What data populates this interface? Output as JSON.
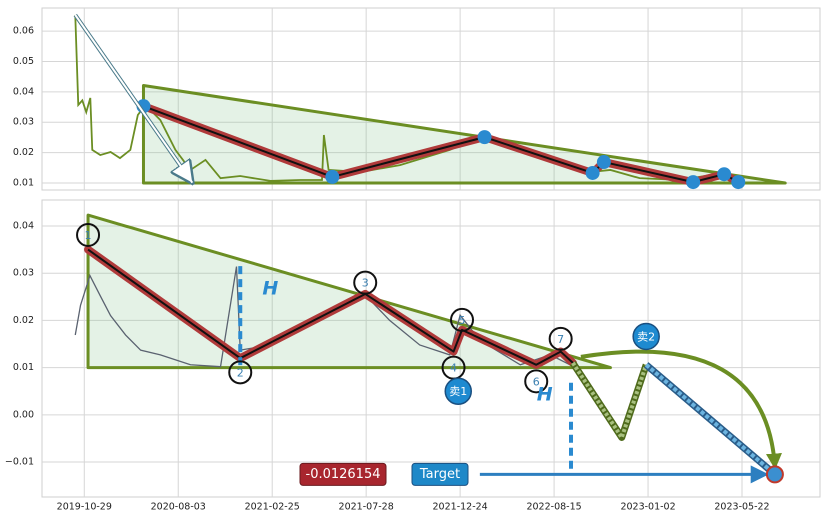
{
  "chart_data": [
    {
      "type": "line",
      "xlim": [
        -0.45,
        7.83
      ],
      "ylim": [
        0.0077,
        0.0676
      ],
      "xticks": [
        0,
        1,
        2,
        3,
        4,
        5,
        6,
        7
      ],
      "yticks": [
        0.01,
        0.02,
        0.03,
        0.04,
        0.05,
        0.06
      ],
      "grid": true,
      "series": [
        {
          "color": "#6b8e23",
          "x": [
            -0.096,
            -0.064,
            -0.021,
            0.021,
            0.064,
            0.085,
            0.17,
            0.28,
            0.38,
            0.49,
            0.57,
            0.65,
            0.81,
            0.97,
            1.13,
            1.29,
            1.45,
            1.66,
            1.98,
            2.3,
            2.53,
            2.55,
            2.6,
            2.94,
            3.36,
            3.89,
            4.26,
            4.64,
            5.06,
            5.38,
            5.6,
            5.91,
            6.34,
            6.66,
            6.98
          ],
          "values": [
            0.0653,
            0.0357,
            0.0372,
            0.0333,
            0.038,
            0.0209,
            0.0192,
            0.0202,
            0.0182,
            0.0209,
            0.0324,
            0.0357,
            0.0307,
            0.0209,
            0.0143,
            0.0176,
            0.0116,
            0.0123,
            0.0107,
            0.011,
            0.011,
            0.0258,
            0.0143,
            0.0136,
            0.0159,
            0.0209,
            0.0258,
            0.0209,
            0.0169,
            0.0136,
            0.0143,
            0.0116,
            0.011,
            0.0126,
            0.0103
          ]
        }
      ],
      "triangle": {
        "color": "#6b8e23",
        "x": [
          0.63,
          0.63,
          7.46
        ],
        "values": [
          0.0421,
          0.01,
          0.01
        ]
      },
      "zigzag": {
        "color": "#b03a3a",
        "x": [
          0.63,
          2.64,
          4.26,
          5.41,
          5.53,
          6.48,
          6.81,
          6.96
        ],
        "values": [
          0.0353,
          0.012,
          0.0251,
          0.0133,
          0.0169,
          0.0103,
          0.0129,
          0.0103
        ]
      },
      "arrow": {
        "x": [
          -0.096,
          1.15
        ],
        "values": [
          0.0653,
          0.0101
        ]
      }
    },
    {
      "type": "line",
      "xlim": [
        -0.45,
        7.83
      ],
      "ylim": [
        -0.0174,
        0.0455
      ],
      "xticks": [
        {
          "value": 0,
          "label": "2019-10-29"
        },
        {
          "value": 1,
          "label": "2020-08-03"
        },
        {
          "value": 2,
          "label": "2021-02-25"
        },
        {
          "value": 3,
          "label": "2021-07-28"
        },
        {
          "value": 4,
          "label": "2021-12-24"
        },
        {
          "value": 5,
          "label": "2022-08-15"
        },
        {
          "value": 6,
          "label": "2023-01-02"
        },
        {
          "value": 7,
          "label": "2023-05-22"
        }
      ],
      "yticks": [
        {
          "value": -0.01,
          "label": "−0.01"
        },
        {
          "value": 0,
          "label": "0.00"
        },
        0.01,
        0.02,
        0.03,
        0.04
      ],
      "grid": true,
      "series": [
        {
          "color": "#5a6270",
          "x": [
            -0.096,
            -0.04,
            0.06,
            0.17,
            0.28,
            0.44,
            0.6,
            0.81,
            1.13,
            1.45,
            1.62,
            1.66,
            1.98,
            2.3,
            2.72,
            2.99,
            3.25,
            3.57,
            3.89,
            4.0,
            4.21,
            4.64,
            4.96,
            5.17
          ],
          "values": [
            0.0169,
            0.0232,
            0.0295,
            0.0252,
            0.021,
            0.0169,
            0.0137,
            0.0127,
            0.0106,
            0.0102,
            0.0314,
            0.0137,
            0.0148,
            0.019,
            0.0233,
            0.0254,
            0.02,
            0.0148,
            0.0127,
            0.0211,
            0.0158,
            0.0106,
            0.0127,
            0.0106
          ]
        }
      ],
      "triangle": {
        "color": "#6b8e23",
        "x": [
          0.04,
          0.04,
          5.6
        ],
        "values": [
          0.0423,
          0.01,
          0.01
        ]
      },
      "zigzag": {
        "color": "#b03a3a",
        "x": [
          0.04,
          1.66,
          2.99,
          3.93,
          4.02,
          4.81,
          5.07,
          5.2
        ],
        "values": [
          0.035,
          0.012,
          0.0256,
          0.0134,
          0.018,
          0.0106,
          0.0134,
          0.011
        ]
      },
      "pivots": [
        {
          "label": "1",
          "x": 0.04,
          "y": 0.0381
        },
        {
          "label": "2",
          "x": 1.66,
          "y": 0.009
        },
        {
          "label": "3",
          "x": 2.99,
          "y": 0.028
        },
        {
          "label": "4",
          "x": 3.93,
          "y": 0.01
        },
        {
          "label": "5",
          "x": 4.02,
          "y": 0.0201
        },
        {
          "label": "6",
          "x": 4.81,
          "y": 0.0071
        },
        {
          "label": "7",
          "x": 5.07,
          "y": 0.0161
        }
      ],
      "projection": {
        "x": [
          5.2,
          5.72,
          5.98
        ],
        "values": [
          0.011,
          -0.0048,
          0.0106
        ]
      },
      "target_line": {
        "x": [
          5.98,
          7.35
        ],
        "values": [
          0.0106,
          -0.0126
        ]
      },
      "dashes": [
        {
          "x": 1.66,
          "values": [
            0.0315,
            0.0099
          ]
        },
        {
          "x": 5.18,
          "values": [
            0.0068,
            -0.0126
          ]
        }
      ],
      "h_labels": [
        {
          "label": "H",
          "x": 1.98,
          "y": 0.0266
        },
        {
          "label": "H",
          "x": 4.9,
          "y": 0.0042
        }
      ],
      "sells": [
        {
          "label": "卖1",
          "x": 3.98,
          "y": 0.005
        },
        {
          "label": "卖2",
          "x": 5.98,
          "y": 0.0166
        }
      ],
      "target": {
        "label": "Target",
        "value": -0.0126154,
        "x": 7.35,
        "arrow_from": 4.21
      }
    }
  ]
}
